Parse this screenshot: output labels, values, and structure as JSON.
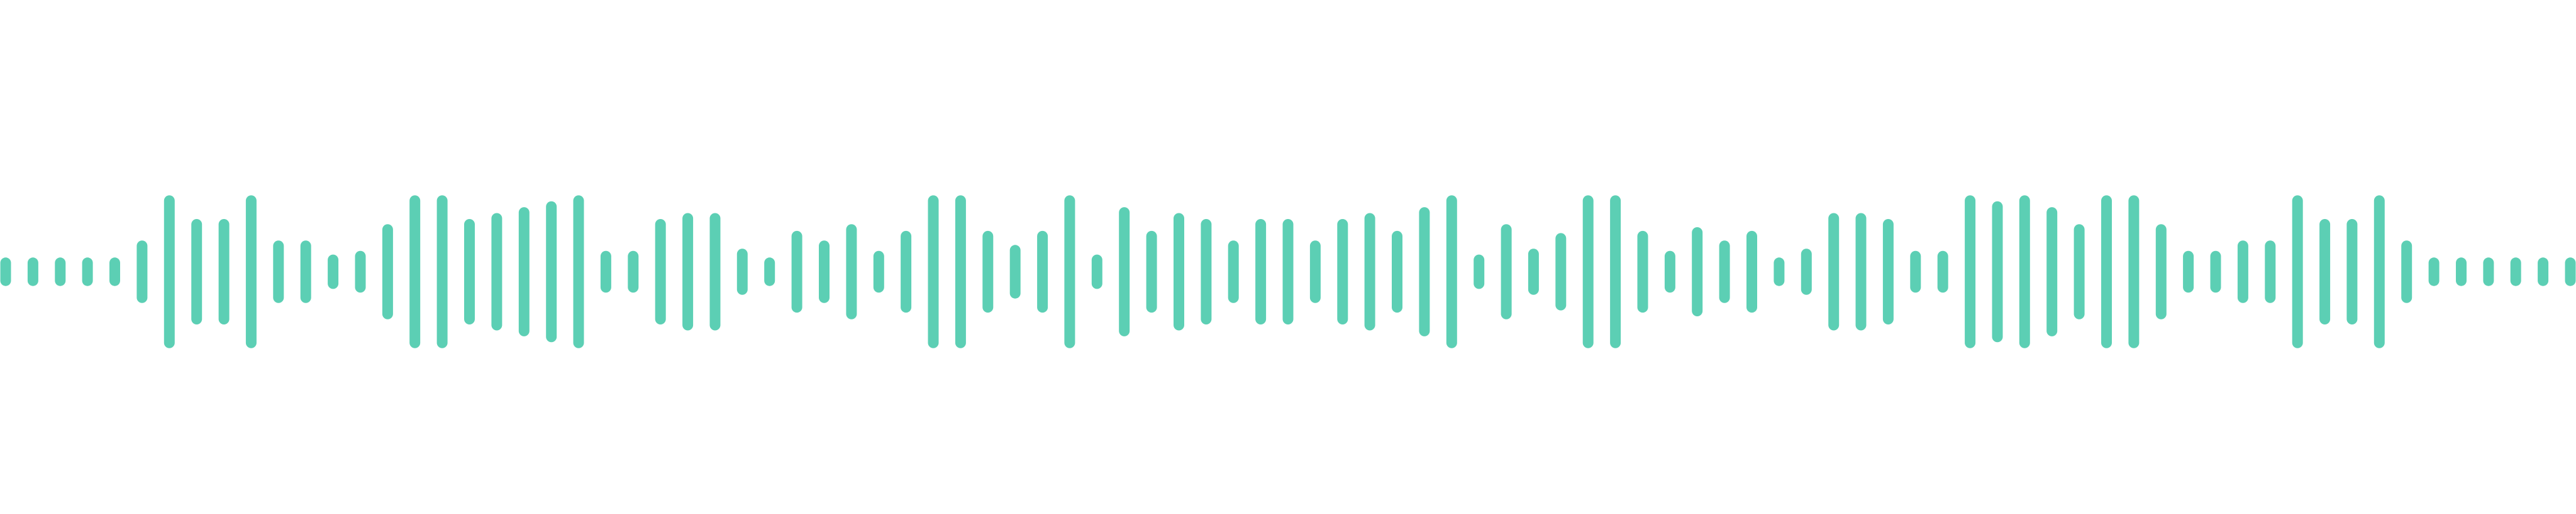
{
  "waveform": {
    "bar_color": "#5ccfb4",
    "background_color": "#ffffff",
    "icon": "audio-waveform-icon",
    "levels": [
      0.12,
      0.12,
      0.12,
      0.12,
      0.12,
      0.35,
      0.96,
      0.64,
      0.64,
      0.96,
      0.35,
      0.35,
      0.16,
      0.21,
      0.57,
      0.96,
      0.96,
      0.64,
      0.72,
      0.8,
      0.88,
      0.96,
      0.21,
      0.21,
      0.64,
      0.72,
      0.72,
      0.24,
      0.12,
      0.48,
      0.35,
      0.57,
      0.21,
      0.48,
      0.96,
      0.96,
      0.48,
      0.29,
      0.48,
      0.96,
      0.16,
      0.8,
      0.48,
      0.72,
      0.64,
      0.35,
      0.64,
      0.64,
      0.35,
      0.64,
      0.72,
      0.48,
      0.8,
      0.96,
      0.16,
      0.57,
      0.24,
      0.45,
      0.96,
      0.96,
      0.48,
      0.21,
      0.53,
      0.35,
      0.48,
      0.12,
      0.24,
      0.72,
      0.72,
      0.64,
      0.21,
      0.21,
      0.96,
      0.88,
      0.96,
      0.8,
      0.57,
      0.96,
      0.96,
      0.57,
      0.21,
      0.21,
      0.35,
      0.35,
      0.96,
      0.64,
      0.64,
      0.96,
      0.35,
      0.12,
      0.12,
      0.12,
      0.12,
      0.12,
      0.12
    ]
  }
}
